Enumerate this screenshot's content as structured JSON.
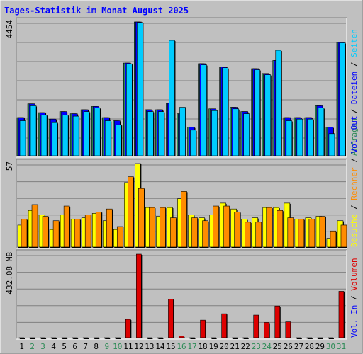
{
  "chart_data": {
    "type": "bar",
    "title": "Tages-Statistik im Monat August 2025",
    "categories": [
      "1",
      "2",
      "3",
      "4",
      "5",
      "6",
      "7",
      "8",
      "9",
      "10",
      "11",
      "12",
      "13",
      "14",
      "15",
      "16",
      "17",
      "18",
      "19",
      "20",
      "21",
      "22",
      "23",
      "24",
      "25",
      "26",
      "27",
      "28",
      "29",
      "30",
      "31"
    ],
    "weekend_days": [
      2,
      3,
      9,
      10,
      16,
      17,
      23,
      24,
      30,
      31
    ],
    "colors": {
      "anfragen": "#2e8b57",
      "dateien": "#0000ff",
      "seiten": "#00ccff",
      "besuche": "#ffff00",
      "rechner": "#ff8c00",
      "vol_out": "#0000ff",
      "vol_in": "#0000ff",
      "volumen": "#dd0000",
      "weekend": "#2e8b57",
      "title": "#0000ff",
      "background": "#c0c0c0"
    },
    "panels": [
      {
        "id": "hits",
        "scale_label": "4454",
        "ymax": 4454,
        "scale": "log",
        "right_label": [
          {
            "text": "Anfragen",
            "color": "#2e8b57"
          },
          {
            "text": " / ",
            "color": "#000000"
          },
          {
            "text": "Dateien",
            "color": "#0000ff"
          },
          {
            "text": " / ",
            "color": "#000000"
          },
          {
            "text": "Seiten",
            "color": "#00ccff"
          }
        ],
        "series": [
          {
            "name": "Anfragen",
            "values": [
              10,
              25,
              14,
              9,
              15,
              13,
              17,
              21,
              10,
              8,
              336,
              4454,
              17,
              17,
              26,
              13,
              5,
              323,
              18,
              266,
              20,
              15,
              236,
              174,
              395,
              10,
              10,
              10,
              22,
              5,
              1235
            ]
          },
          {
            "name": "Dateien",
            "values": [
              10,
              25,
              14,
              9,
              15,
              13,
              17,
              21,
              10,
              8,
              336,
              4454,
              17,
              17,
              26,
              13,
              5,
              323,
              18,
              266,
              20,
              15,
              236,
              174,
              395,
              10,
              10,
              10,
              22,
              5,
              1235
            ]
          },
          {
            "name": "Seiten",
            "values": [
              8,
              22,
              12,
              7,
              12,
              11,
              15,
              19,
              8,
              6,
              320,
              4300,
              15,
              15,
              1400,
              20,
              4,
              300,
              16,
              250,
              18,
              13,
              220,
              160,
              750,
              8,
              9,
              9,
              19,
              3,
              1200
            ]
          }
        ]
      },
      {
        "id": "visits",
        "scale_label": "57",
        "ymax": 57,
        "scale": "linear",
        "right_label": [
          {
            "text": "Besuche",
            "color": "#ffff00"
          },
          {
            "text": " / ",
            "color": "#000000"
          },
          {
            "text": "Rechner",
            "color": "#ff8c00"
          },
          {
            "text": " / ",
            "color": "#000000"
          },
          {
            "text": "Vol. Out",
            "color": "#0000ff"
          }
        ],
        "series": [
          {
            "name": "Besuche",
            "values": [
              15,
              25,
              22,
              12,
              22,
              19,
              20,
              23,
              18,
              12,
              44,
              57,
              27,
              21,
              27,
              33,
              22,
              20,
              22,
              30,
              26,
              19,
              20,
              27,
              27,
              30,
              19,
              20,
              21,
              6,
              18
            ]
          },
          {
            "name": "Rechner",
            "values": [
              19,
              29,
              21,
              18,
              28,
              19,
              22,
              24,
              26,
              14,
              48,
              40,
              27,
              27,
              20,
              38,
              20,
              18,
              28,
              28,
              24,
              17,
              17,
              27,
              25,
              20,
              19,
              19,
              21,
              11,
              15
            ]
          }
        ]
      },
      {
        "id": "volume",
        "scale_label": "432.08 MB",
        "ymax": 432.08,
        "scale": "linear",
        "right_label": [
          {
            "text": "Vol. In",
            "color": "#0000ff"
          },
          {
            "text": " / ",
            "color": "#000000"
          },
          {
            "text": "Volumen",
            "color": "#dd0000"
          }
        ],
        "series": [
          {
            "name": "Volumen",
            "values": [
              0,
              0,
              0,
              0,
              0,
              0,
              0,
              0,
              0,
              0,
              95,
              432.08,
              0,
              0,
              200,
              8,
              0,
              91,
              0,
              124,
              0,
              0,
              117,
              79,
              164,
              82,
              0,
              0,
              0,
              0,
              240
            ]
          }
        ]
      }
    ]
  }
}
